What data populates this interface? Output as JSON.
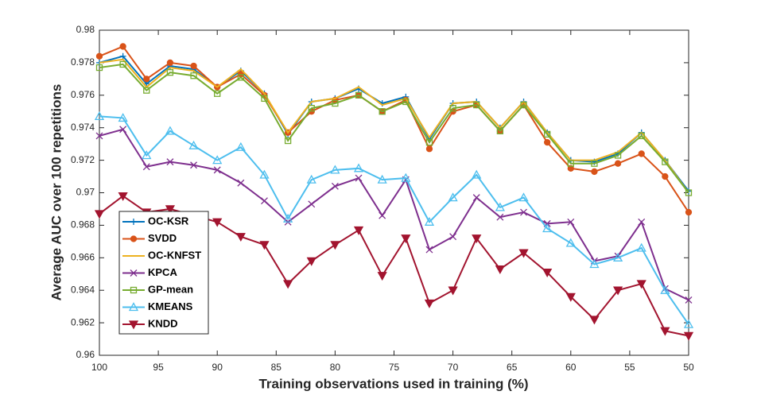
{
  "chart_data": {
    "type": "line",
    "xlabel": "Training observations used in training (%)",
    "ylabel": "Average AUC over 100 repetitions",
    "x": [
      100,
      98,
      96,
      94,
      92,
      90,
      88,
      86,
      84,
      82,
      80,
      78,
      76,
      74,
      72,
      70,
      68,
      66,
      64,
      62,
      60,
      58,
      56,
      54,
      52,
      50
    ],
    "xlim": [
      100,
      50
    ],
    "xticks": [
      100,
      95,
      90,
      85,
      80,
      75,
      70,
      65,
      60,
      55,
      50
    ],
    "ylim": [
      0.96,
      0.98
    ],
    "yticks": [
      0.96,
      0.962,
      0.964,
      0.966,
      0.968,
      0.97,
      0.972,
      0.974,
      0.976,
      0.978,
      0.98
    ],
    "legend": "west",
    "series": [
      {
        "name": "OC-KSR",
        "color": "#0072BD",
        "marker": "plus",
        "values": [
          0.978,
          0.9784,
          0.9767,
          0.9778,
          0.9776,
          0.9765,
          0.9775,
          0.9761,
          0.9736,
          0.9756,
          0.9758,
          0.9764,
          0.9755,
          0.9759,
          0.9733,
          0.9755,
          0.9756,
          0.974,
          0.9756,
          0.9737,
          0.972,
          0.9719,
          0.9724,
          0.9737,
          0.972,
          0.9701
        ]
      },
      {
        "name": "SVDD",
        "color": "#D95319",
        "marker": "circle",
        "values": [
          0.9784,
          0.979,
          0.977,
          0.978,
          0.9778,
          0.9765,
          0.9773,
          0.976,
          0.9737,
          0.975,
          0.9757,
          0.976,
          0.975,
          0.9757,
          0.9727,
          0.975,
          0.9754,
          0.9738,
          0.9754,
          0.9731,
          0.9715,
          0.9713,
          0.9718,
          0.9724,
          0.971,
          0.9688
        ]
      },
      {
        "name": "OC-KNFST",
        "color": "#EDB120",
        "marker": "none",
        "values": [
          0.978,
          0.9782,
          0.9765,
          0.9777,
          0.9775,
          0.9765,
          0.9776,
          0.9761,
          0.9737,
          0.9756,
          0.9758,
          0.9765,
          0.9754,
          0.9758,
          0.9734,
          0.9755,
          0.9756,
          0.974,
          0.9756,
          0.9737,
          0.972,
          0.972,
          0.9725,
          0.9737,
          0.972,
          0.97
        ]
      },
      {
        "name": "KPCA",
        "color": "#7E2F8E",
        "marker": "x",
        "values": [
          0.9735,
          0.9739,
          0.9716,
          0.9719,
          0.9717,
          0.9714,
          0.9706,
          0.9695,
          0.9682,
          0.9693,
          0.9704,
          0.9709,
          0.9686,
          0.9708,
          0.9665,
          0.9673,
          0.9697,
          0.9685,
          0.9688,
          0.9681,
          0.9682,
          0.9658,
          0.9661,
          0.9682,
          0.9641,
          0.9634
        ]
      },
      {
        "name": "GP-mean",
        "color": "#77AC30",
        "marker": "square",
        "values": [
          0.9777,
          0.9779,
          0.9763,
          0.9774,
          0.9772,
          0.9761,
          0.9771,
          0.9758,
          0.9732,
          0.9752,
          0.9755,
          0.976,
          0.975,
          0.9756,
          0.9731,
          0.9752,
          0.9754,
          0.9738,
          0.9754,
          0.9736,
          0.9718,
          0.9718,
          0.9723,
          0.9735,
          0.9719,
          0.97
        ]
      },
      {
        "name": "KMEANS",
        "color": "#4DBEEE",
        "marker": "triangle-up",
        "values": [
          0.9747,
          0.9746,
          0.9723,
          0.9738,
          0.9729,
          0.972,
          0.9728,
          0.9711,
          0.9684,
          0.9708,
          0.9714,
          0.9715,
          0.9708,
          0.9709,
          0.9682,
          0.9697,
          0.9711,
          0.9691,
          0.9697,
          0.9678,
          0.9669,
          0.9656,
          0.966,
          0.9666,
          0.964,
          0.9619
        ]
      },
      {
        "name": "KNDD",
        "color": "#A2142F",
        "marker": "triangle-down",
        "values": [
          0.9687,
          0.9698,
          0.9688,
          0.969,
          0.9686,
          0.9682,
          0.9673,
          0.9668,
          0.9644,
          0.9658,
          0.9668,
          0.9677,
          0.9649,
          0.9672,
          0.9632,
          0.964,
          0.9672,
          0.9653,
          0.9663,
          0.9651,
          0.9636,
          0.9622,
          0.964,
          0.9644,
          0.9615,
          0.9612
        ]
      }
    ]
  }
}
